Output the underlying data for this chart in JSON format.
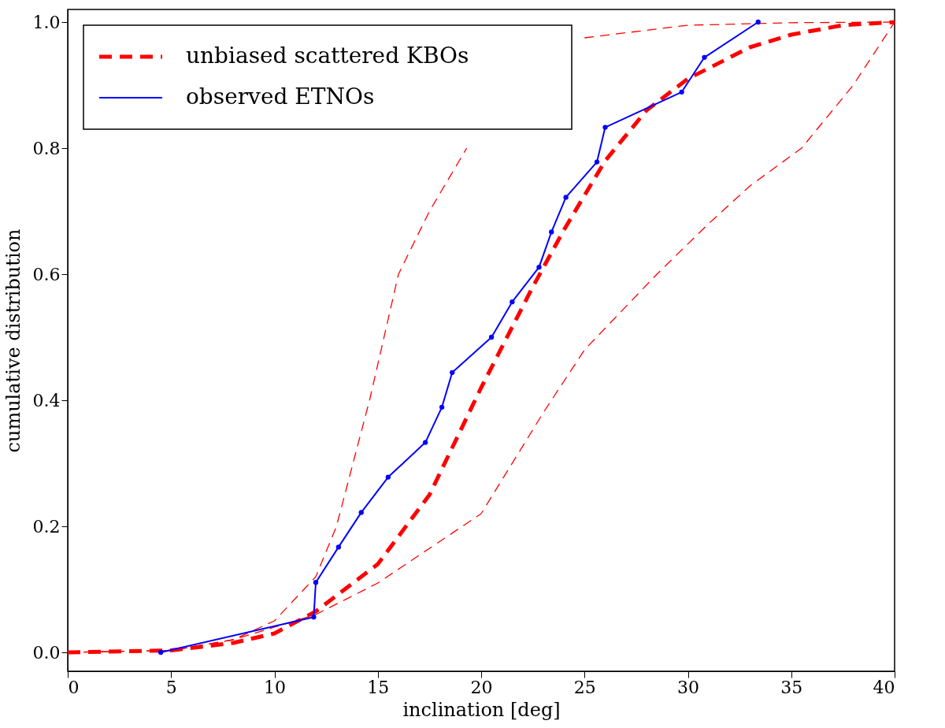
{
  "chart_data": {
    "type": "line",
    "xlabel": "inclination [deg]",
    "ylabel": "cumulative distribution",
    "xlim": [
      0,
      40
    ],
    "ylim": [
      -0.03,
      1.02
    ],
    "xticks": [
      0,
      5,
      10,
      15,
      20,
      25,
      30,
      35,
      40
    ],
    "yticks": [
      {
        "value": 0,
        "label": "0.0"
      },
      {
        "value": 0.2,
        "label": "0.2"
      },
      {
        "value": 0.4,
        "label": "0.4"
      },
      {
        "value": 0.6,
        "label": "0.6"
      },
      {
        "value": 0.8,
        "label": "0.8"
      },
      {
        "value": 1,
        "label": "1.0"
      }
    ],
    "grid": false,
    "legend": "top left",
    "series": [
      {
        "name": "unbiased scattered KBOs",
        "color": "#ff0000",
        "line_style": "dashed",
        "marker": "none",
        "x": [
          0,
          5,
          8,
          10,
          12,
          15,
          17.5,
          20,
          22.5,
          24,
          26,
          28,
          30,
          33,
          35,
          37.5,
          40
        ],
        "values": [
          0,
          0.003,
          0.015,
          0.03,
          0.065,
          0.14,
          0.25,
          0.42,
          0.58,
          0.67,
          0.78,
          0.86,
          0.91,
          0.96,
          0.98,
          0.995,
          1.0
        ]
      },
      {
        "color": "#ff0000",
        "line_style": "dashed",
        "marker": "none",
        "x": [
          0,
          5,
          8,
          10,
          12,
          13,
          14.6,
          16,
          17.5,
          19.3,
          20.7,
          22.5,
          25,
          30,
          35,
          40
        ],
        "values": [
          0,
          0.003,
          0.02,
          0.05,
          0.12,
          0.2,
          0.4,
          0.6,
          0.7,
          0.8,
          null,
          null,
          0.975,
          0.995,
          0.999,
          1.0
        ]
      },
      {
        "color": "#ff0000",
        "line_style": "dashed",
        "marker": "none",
        "x": [
          0,
          5,
          8,
          10,
          12,
          15,
          17.5,
          20,
          23,
          25,
          28.5,
          31,
          33,
          35.5,
          38,
          40
        ],
        "values": [
          0,
          0.003,
          0.02,
          0.04,
          0.06,
          0.11,
          0.165,
          0.22,
          0.38,
          0.48,
          0.6,
          0.68,
          0.74,
          0.8,
          0.9,
          1.0
        ]
      },
      {
        "name": "observed ETNOs",
        "color": "#0000ff",
        "line_style": "solid",
        "marker": "circle",
        "x": [
          4.5,
          11.9,
          12.0,
          13.1,
          14.2,
          15.5,
          17.3,
          18.1,
          18.6,
          20.5,
          21.5,
          22.8,
          23.4,
          24.1,
          25.6,
          26.0,
          29.7,
          30.8,
          33.4
        ],
        "values": [
          0,
          0.056,
          0.111,
          0.167,
          0.222,
          0.278,
          0.333,
          0.389,
          0.444,
          0.5,
          0.556,
          0.611,
          0.667,
          0.722,
          0.778,
          0.833,
          0.889,
          0.944,
          1.0
        ]
      }
    ]
  }
}
